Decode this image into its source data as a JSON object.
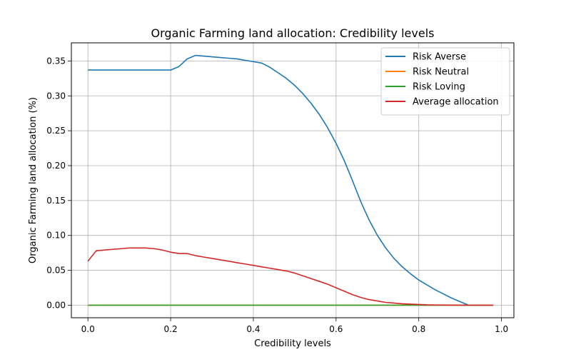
{
  "chart_data": {
    "type": "line",
    "title": "Organic Farming land allocation: Credibility levels",
    "xlabel": "Credibility levels",
    "ylabel": "Organic Farming land allocation (%)",
    "xlim": [
      -0.04,
      1.03
    ],
    "ylim": [
      -0.018,
      0.376
    ],
    "x_ticks": [
      0.0,
      0.2,
      0.4,
      0.6,
      0.8,
      1.0
    ],
    "x_tick_labels": [
      "0.0",
      "0.2",
      "0.4",
      "0.6",
      "0.8",
      "1.0"
    ],
    "y_ticks": [
      0.0,
      0.05,
      0.1,
      0.15,
      0.2,
      0.25,
      0.3,
      0.35
    ],
    "y_tick_labels": [
      "0.00",
      "0.05",
      "0.10",
      "0.15",
      "0.20",
      "0.25",
      "0.30",
      "0.35"
    ],
    "grid": true,
    "legend_position": "top-right",
    "x": [
      0.0,
      0.02,
      0.04,
      0.06,
      0.08,
      0.1,
      0.12,
      0.14,
      0.16,
      0.18,
      0.2,
      0.22,
      0.24,
      0.26,
      0.28,
      0.3,
      0.32,
      0.34,
      0.36,
      0.38,
      0.4,
      0.42,
      0.44,
      0.46,
      0.48,
      0.5,
      0.52,
      0.54,
      0.56,
      0.58,
      0.6,
      0.62,
      0.64,
      0.66,
      0.68,
      0.7,
      0.72,
      0.74,
      0.76,
      0.78,
      0.8,
      0.82,
      0.84,
      0.86,
      0.88,
      0.9,
      0.92,
      0.94,
      0.96,
      0.98
    ],
    "series": [
      {
        "name": "Risk Averse",
        "color": "#1f77b4",
        "values": [
          0.337,
          0.337,
          0.337,
          0.337,
          0.337,
          0.337,
          0.337,
          0.337,
          0.337,
          0.337,
          0.337,
          0.342,
          0.353,
          0.358,
          0.357,
          0.356,
          0.355,
          0.354,
          0.353,
          0.351,
          0.349,
          0.347,
          0.341,
          0.333,
          0.325,
          0.315,
          0.303,
          0.289,
          0.273,
          0.254,
          0.232,
          0.207,
          0.178,
          0.148,
          0.122,
          0.1,
          0.082,
          0.067,
          0.055,
          0.045,
          0.036,
          0.029,
          0.022,
          0.016,
          0.01,
          0.005,
          0.0,
          0.0,
          0.0,
          0.0
        ]
      },
      {
        "name": "Risk Neutral",
        "color": "#ff7f0e",
        "values": [
          0,
          0,
          0,
          0,
          0,
          0,
          0,
          0,
          0,
          0,
          0,
          0,
          0,
          0,
          0,
          0,
          0,
          0,
          0,
          0,
          0,
          0,
          0,
          0,
          0,
          0,
          0,
          0,
          0,
          0,
          0,
          0,
          0,
          0,
          0,
          0,
          0,
          0,
          0,
          0,
          0,
          0,
          0,
          0,
          0,
          0,
          0,
          0,
          0,
          0
        ]
      },
      {
        "name": "Risk Loving",
        "color": "#2ca02c",
        "values": [
          0,
          0,
          0,
          0,
          0,
          0,
          0,
          0,
          0,
          0,
          0,
          0,
          0,
          0,
          0,
          0,
          0,
          0,
          0,
          0,
          0,
          0,
          0,
          0,
          0,
          0,
          0,
          0,
          0,
          0,
          0,
          0,
          0,
          0,
          0,
          0,
          0,
          0,
          0,
          0,
          0,
          0,
          0,
          0,
          0,
          0,
          0,
          0,
          0,
          0
        ]
      },
      {
        "name": "Average allocation",
        "color": "#d62728",
        "values": [
          0.063,
          0.078,
          0.079,
          0.08,
          0.081,
          0.082,
          0.082,
          0.082,
          0.081,
          0.079,
          0.076,
          0.074,
          0.074,
          0.071,
          0.069,
          0.067,
          0.065,
          0.063,
          0.061,
          0.059,
          0.057,
          0.055,
          0.053,
          0.051,
          0.049,
          0.046,
          0.042,
          0.038,
          0.034,
          0.03,
          0.025,
          0.02,
          0.015,
          0.011,
          0.008,
          0.006,
          0.004,
          0.003,
          0.002,
          0.0015,
          0.001,
          0.0005,
          0.0003,
          0.0002,
          0.0001,
          0.0,
          0.0,
          0.0,
          0.0,
          0.0
        ]
      }
    ]
  }
}
